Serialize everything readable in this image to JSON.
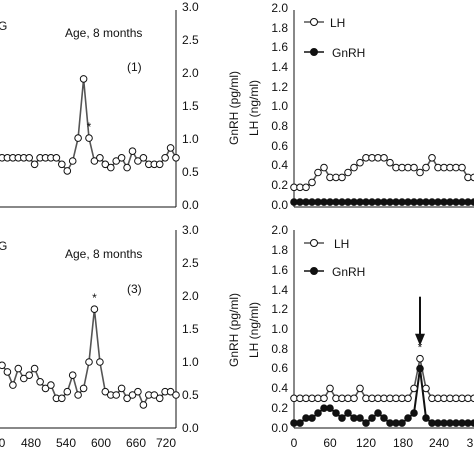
{
  "colors": {
    "line": "#555555",
    "open_marker": "#ffffff",
    "filled_marker": "#111111",
    "axis": "#111111"
  },
  "chart_data": [
    {
      "id": "top-left",
      "type": "line",
      "panel_tag": "G",
      "annotation": "Age, 8 months",
      "panel_number": "(1)",
      "ylabel_right": "GnRH (pg/ml)",
      "ylim": [
        0,
        3.0
      ],
      "y_ticks": [
        "0.0",
        "0.5",
        "1.0",
        "1.5",
        "2.0",
        "2.5",
        "3.0"
      ],
      "xlim": [
        400,
        720
      ],
      "x_ticks": [],
      "peak_mark": {
        "x": 560,
        "label": "*"
      },
      "series": [
        {
          "marker": "open",
          "x": [
            400,
            410,
            420,
            430,
            440,
            450,
            460,
            470,
            480,
            490,
            500,
            510,
            520,
            530,
            540,
            550,
            560,
            570,
            580,
            590,
            600,
            610,
            620,
            630,
            640,
            650,
            660,
            670,
            680,
            690,
            700,
            710,
            720
          ],
          "y": [
            0.75,
            0.75,
            0.75,
            0.75,
            0.75,
            0.75,
            0.65,
            0.75,
            0.75,
            0.75,
            0.75,
            0.65,
            0.55,
            0.7,
            1.05,
            1.95,
            1.05,
            0.7,
            0.75,
            0.65,
            0.6,
            0.7,
            0.75,
            0.6,
            0.85,
            0.7,
            0.75,
            0.65,
            0.65,
            0.65,
            0.75,
            0.9,
            0.75
          ]
        }
      ]
    },
    {
      "id": "top-right",
      "type": "line",
      "ylabel": "LH (ng/ml)",
      "ylim": [
        0,
        2.0
      ],
      "y_ticks": [
        "0.0",
        "0.2",
        "0.4",
        "0.6",
        "0.8",
        "1.0",
        "1.2",
        "1.4",
        "1.6",
        "1.8",
        "2.0"
      ],
      "xlim": [
        0,
        360
      ],
      "x_ticks": [],
      "legend": {
        "position": "top-left"
      },
      "series": [
        {
          "name": "LH",
          "marker": "open",
          "x": [
            0,
            10,
            20,
            30,
            40,
            50,
            60,
            70,
            80,
            90,
            100,
            110,
            120,
            130,
            140,
            150,
            160,
            170,
            180,
            190,
            200,
            210,
            220,
            230,
            240,
            250,
            260,
            270,
            280,
            290,
            300,
            310,
            320,
            330,
            340,
            350,
            360
          ],
          "y": [
            0.2,
            0.2,
            0.2,
            0.25,
            0.35,
            0.4,
            0.3,
            0.3,
            0.3,
            0.35,
            0.4,
            0.45,
            0.5,
            0.5,
            0.5,
            0.5,
            0.45,
            0.4,
            0.4,
            0.4,
            0.4,
            0.35,
            0.4,
            0.5,
            0.4,
            0.4,
            0.4,
            0.4,
            0.4,
            0.3,
            0.3,
            0.3,
            0.3,
            0.3,
            0.3,
            0.3,
            0.3
          ]
        },
        {
          "name": "GnRH",
          "marker": "filled",
          "x": [
            0,
            10,
            20,
            30,
            40,
            50,
            60,
            70,
            80,
            90,
            100,
            110,
            120,
            130,
            140,
            150,
            160,
            170,
            180,
            190,
            200,
            210,
            220,
            230,
            240,
            250,
            260,
            270,
            280,
            290,
            300,
            310,
            320,
            330,
            340,
            350,
            360
          ],
          "y": [
            0.05,
            0.05,
            0.05,
            0.05,
            0.05,
            0.05,
            0.05,
            0.05,
            0.05,
            0.05,
            0.05,
            0.05,
            0.05,
            0.05,
            0.05,
            0.05,
            0.05,
            0.05,
            0.05,
            0.05,
            0.05,
            0.05,
            0.05,
            0.05,
            0.05,
            0.05,
            0.05,
            0.05,
            0.05,
            0.05,
            0.05,
            0.05,
            0.05,
            0.05,
            0.05,
            0.05,
            0.05
          ]
        }
      ]
    },
    {
      "id": "bottom-left",
      "type": "line",
      "panel_tag": "G",
      "annotation": "Age, 8 months",
      "panel_number": "(3)",
      "ylabel_right": "GnRH (pg/ml)",
      "ylim": [
        0,
        3.0
      ],
      "y_ticks": [
        "0.0",
        "0.5",
        "1.0",
        "1.5",
        "2.0",
        "2.5",
        "3.0"
      ],
      "xlim": [
        400,
        720
      ],
      "x_ticks": [
        "0",
        "480",
        "540",
        "600",
        "660",
        "720"
      ],
      "peak_mark": {
        "x": 570,
        "label": "*"
      },
      "series": [
        {
          "marker": "open",
          "x": [
            400,
            410,
            420,
            430,
            440,
            450,
            460,
            470,
            480,
            490,
            500,
            510,
            520,
            530,
            540,
            550,
            560,
            570,
            580,
            590,
            600,
            610,
            620,
            630,
            640,
            650,
            660,
            670,
            680,
            690,
            700,
            710,
            720
          ],
          "y": [
            0.95,
            0.85,
            0.65,
            0.9,
            0.75,
            0.8,
            0.9,
            0.7,
            0.6,
            0.65,
            0.45,
            0.45,
            0.55,
            0.8,
            0.5,
            0.6,
            1.0,
            1.8,
            1.0,
            0.55,
            0.5,
            0.5,
            0.6,
            0.45,
            0.5,
            0.55,
            0.35,
            0.5,
            0.5,
            0.45,
            0.55,
            0.55,
            0.5
          ]
        }
      ]
    },
    {
      "id": "bottom-right",
      "type": "line",
      "ylabel": "LH (ng/ml)",
      "ylim": [
        0,
        2.0
      ],
      "y_ticks": [
        "0.0",
        "0.2",
        "0.4",
        "0.6",
        "0.8",
        "1.0",
        "1.2",
        "1.4",
        "1.6",
        "1.8",
        "2.0"
      ],
      "xlim": [
        0,
        360
      ],
      "x_ticks": [
        "0",
        "60",
        "120",
        "180",
        "240",
        "3"
      ],
      "legend": {
        "position": "top-left"
      },
      "arrow_at_x": 210,
      "peak_mark": {
        "x": 210,
        "label": "*"
      },
      "series": [
        {
          "name": "LH",
          "marker": "open",
          "x": [
            0,
            10,
            20,
            30,
            40,
            50,
            60,
            70,
            80,
            90,
            100,
            110,
            120,
            130,
            140,
            150,
            160,
            170,
            180,
            190,
            200,
            210,
            220,
            230,
            240,
            250,
            260,
            270,
            280,
            290,
            300,
            310,
            320,
            330,
            340,
            350,
            360
          ],
          "y": [
            0.3,
            0.3,
            0.3,
            0.3,
            0.3,
            0.3,
            0.4,
            0.3,
            0.3,
            0.3,
            0.3,
            0.4,
            0.3,
            0.3,
            0.3,
            0.3,
            0.3,
            0.3,
            0.3,
            0.3,
            0.4,
            0.7,
            0.4,
            0.3,
            0.3,
            0.3,
            0.3,
            0.3,
            0.3,
            0.3,
            0.3,
            0.3,
            0.3,
            0.3,
            0.3,
            0.3,
            0.3
          ]
        },
        {
          "name": "GnRH",
          "marker": "filled",
          "x": [
            0,
            10,
            20,
            30,
            40,
            50,
            60,
            70,
            80,
            90,
            100,
            110,
            120,
            130,
            140,
            150,
            160,
            170,
            180,
            190,
            200,
            210,
            220,
            230,
            240,
            250,
            260,
            270,
            280,
            290,
            300,
            310,
            320,
            330,
            340,
            350,
            360
          ],
          "y": [
            0.05,
            0.05,
            0.1,
            0.1,
            0.15,
            0.2,
            0.2,
            0.15,
            0.1,
            0.15,
            0.1,
            0.1,
            0.05,
            0.1,
            0.15,
            0.1,
            0.05,
            0.05,
            0.05,
            0.1,
            0.15,
            0.6,
            0.1,
            0.05,
            0.05,
            0.05,
            0.05,
            0.05,
            0.05,
            0.05,
            0.05,
            0.05,
            0.05,
            0.05,
            0.05,
            0.05,
            0.05
          ]
        }
      ]
    }
  ]
}
